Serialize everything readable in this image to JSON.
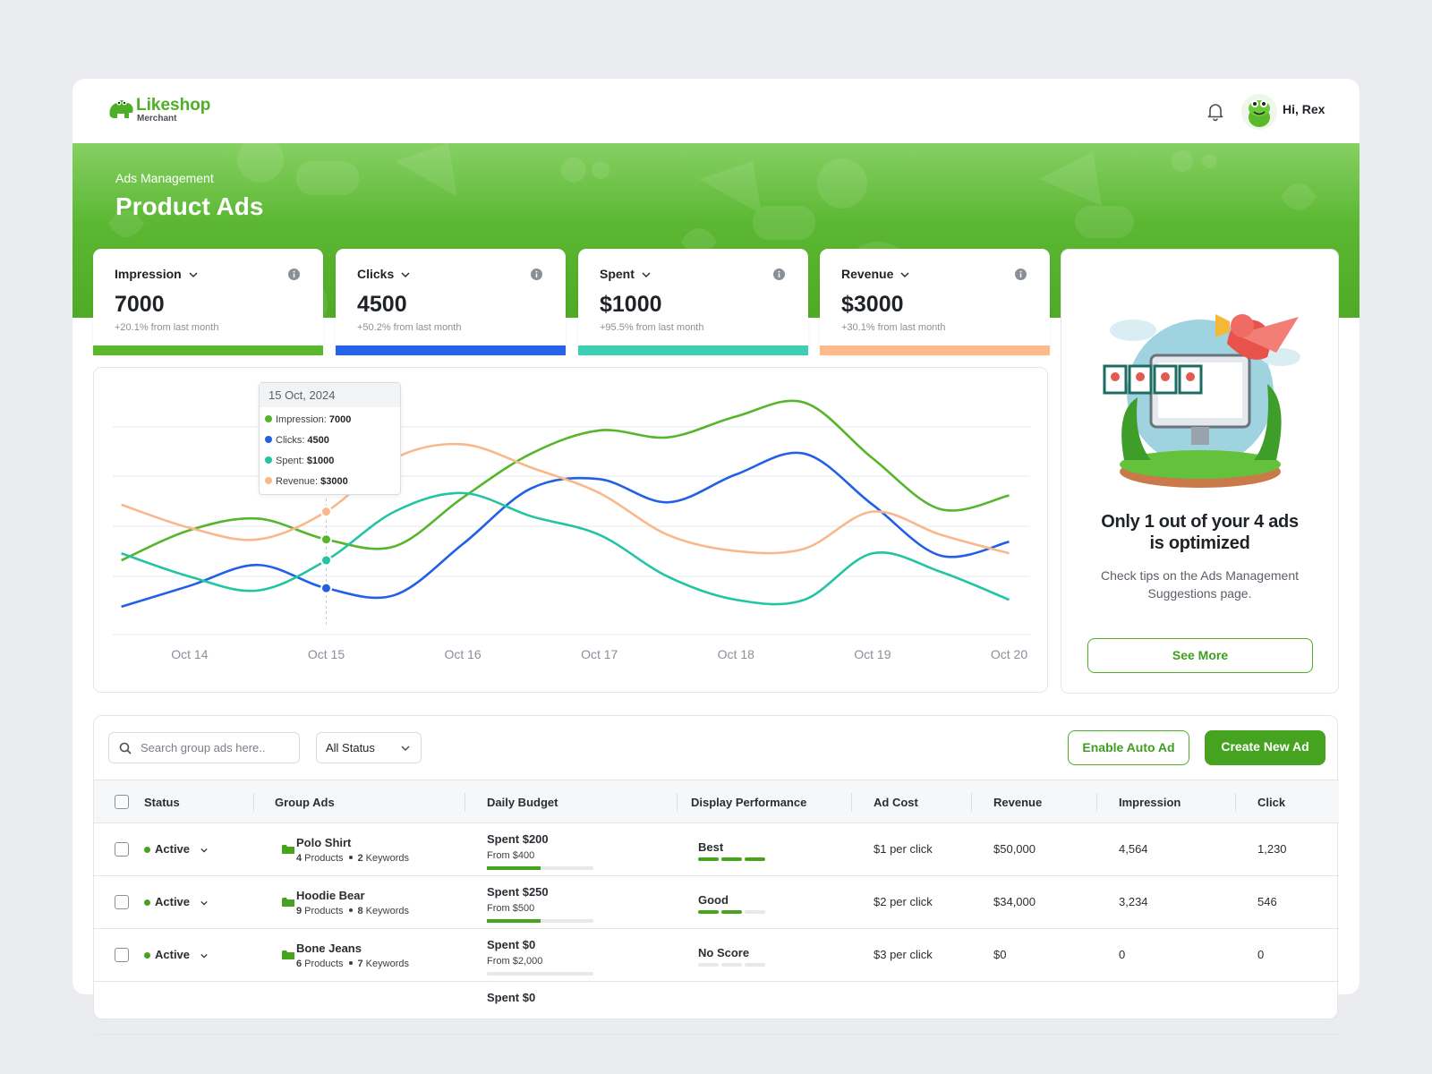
{
  "header": {
    "brand": "Likeshop",
    "brand_sub": "Merchant",
    "greeting": "Hi, Rex"
  },
  "banner": {
    "breadcrumb": "Ads Management",
    "title": "Product Ads"
  },
  "stats": [
    {
      "name": "Impression",
      "value": "7000",
      "change": "+20.1% from last month",
      "color": "#5ab82b"
    },
    {
      "name": "Clicks",
      "value": "4500",
      "change": "+50.2% from last month",
      "color": "#2563eb"
    },
    {
      "name": "Spent",
      "value": "$1000",
      "change": "+95.5% from last month",
      "color": "#3ecfb2"
    },
    {
      "name": "Revenue",
      "value": "$3000",
      "change": "+30.1% from last month",
      "color": "#fdbb8c"
    }
  ],
  "chart_data": {
    "type": "line",
    "categories": [
      null,
      "Oct 14",
      null,
      "Oct 15",
      null,
      "Oct 16",
      null,
      "Oct 17",
      null,
      "Oct 18",
      null,
      "Oct 19",
      null,
      "Oct 20"
    ],
    "ylim": [
      0,
      100
    ],
    "grid": true,
    "series": [
      {
        "name": "Impression",
        "color": "#56b52b",
        "values": [
          32,
          45,
          50,
          41,
          38,
          59,
          78,
          88,
          85,
          94,
          100,
          76,
          54,
          60
        ]
      },
      {
        "name": "Clicks",
        "color": "#2160e6",
        "values": [
          12,
          21,
          30,
          20,
          17,
          39,
          63,
          67,
          57,
          69,
          78,
          56,
          34,
          40
        ]
      },
      {
        "name": "Spent",
        "color": "#22c4a4",
        "values": [
          35,
          25,
          19,
          32,
          53,
          61,
          51,
          43,
          25,
          15,
          15,
          35,
          27,
          15
        ]
      },
      {
        "name": "Revenue",
        "color": "#f9b88b",
        "values": [
          56,
          46,
          41,
          53,
          76,
          82,
          72,
          61,
          43,
          36,
          37,
          53,
          43,
          35
        ]
      }
    ],
    "tooltip": {
      "title": "15 Oct, 2024",
      "rows": [
        {
          "label": "Impression:",
          "value": "7000"
        },
        {
          "label": "Clicks:",
          "value": "4500"
        },
        {
          "label": "Spent:",
          "value": "$1000"
        },
        {
          "label": "Revenue:",
          "value": "$3000"
        }
      ]
    }
  },
  "promo": {
    "title_lines": [
      "Only 1 out of your 4 ads",
      "is optimized"
    ],
    "text_lines": [
      "Check tips on the Ads Management",
      "Suggestions page."
    ],
    "button": "See More"
  },
  "toolbar": {
    "search_placeholder": "Search group ads here..",
    "status_filter": "All Status",
    "buttons": [
      "Enable Auto Ad",
      "Create New Ad"
    ]
  },
  "table": {
    "columns": [
      "Status",
      "Group Ads",
      "Daily Budget",
      "Display Performance",
      "Ad Cost",
      "Revenue",
      "Impression",
      "Click"
    ],
    "product_word": "Products",
    "keyword_word": "Keywords",
    "rows": [
      {
        "status": "Active",
        "name": "Polo Shirt",
        "products": 4,
        "keywords": 2,
        "spent_label": "Spent $200",
        "budget_label": "From $400",
        "spent": 200,
        "budget": 400,
        "performance": "Best",
        "score": 3,
        "ad_cost": "$1 per click",
        "revenue": "$50,000",
        "impression": "4,564",
        "click": "1,230"
      },
      {
        "status": "Active",
        "name": "Hoodie Bear",
        "products": 9,
        "keywords": 8,
        "spent_label": "Spent $250",
        "budget_label": "From $500",
        "spent": 250,
        "budget": 500,
        "performance": "Good",
        "score": 2,
        "ad_cost": "$2 per click",
        "revenue": "$34,000",
        "impression": "3,234",
        "click": "546"
      },
      {
        "status": "Active",
        "name": "Bone Jeans",
        "products": 6,
        "keywords": 7,
        "spent_label": "Spent $0",
        "budget_label": "From $2,000",
        "spent": 0,
        "budget": 2000,
        "performance": "No Score",
        "score": 0,
        "ad_cost": "$3 per click",
        "revenue": "$0",
        "impression": "0",
        "click": "0"
      },
      {
        "spent_label": "Spent $0"
      }
    ]
  }
}
